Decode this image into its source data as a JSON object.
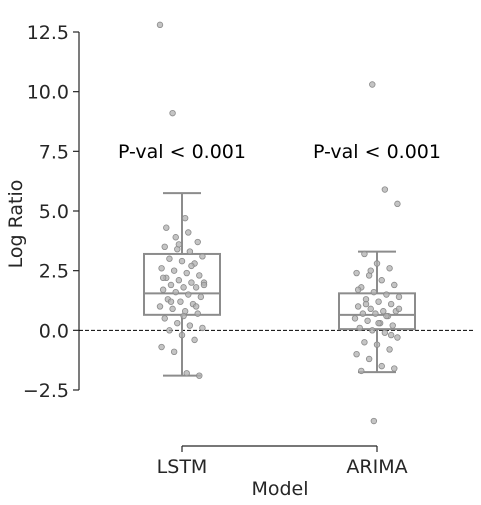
{
  "chart_data": {
    "type": "box",
    "categories": [
      "LSTM",
      "ARIMA"
    ],
    "xlabel": "Model",
    "ylabel": "Log Ratio",
    "yticks": [
      12.5,
      10.0,
      7.5,
      5.0,
      2.5,
      0.0,
      -2.5
    ],
    "ytick_labels": [
      "12.5",
      "10.0",
      "7.5",
      "5.0",
      "2.5",
      "0.0",
      "−2.5"
    ],
    "ylim": [
      -4.8,
      13.0
    ],
    "reference_line": {
      "y": 0.0,
      "style": "dashed",
      "color": "#000000"
    },
    "grid": false,
    "box_color": "#8c8c8c",
    "point_color": "#b0b0b0",
    "annotations": [
      "P-val < 0.001",
      "P-val < 0.001"
    ],
    "boxes": [
      {
        "name": "LSTM",
        "whisker_low": -1.9,
        "q1": 0.65,
        "median": 1.55,
        "q3": 3.2,
        "whisker_high": 5.75
      },
      {
        "name": "ARIMA",
        "whisker_low": -1.75,
        "q1": 0.05,
        "median": 0.65,
        "q3": 1.55,
        "whisker_high": 3.3
      }
    ],
    "points": [
      [
        12.8,
        9.1,
        4.7,
        3.7,
        3.5,
        3.4,
        3.3,
        3.1,
        3.0,
        2.9,
        2.8,
        2.6,
        2.5,
        2.4,
        2.3,
        2.2,
        2.1,
        2.0,
        2.0,
        1.9,
        1.8,
        1.8,
        1.7,
        1.6,
        1.5,
        1.4,
        1.3,
        1.2,
        1.1,
        1.0,
        0.9,
        0.8,
        0.7,
        0.5,
        0.3,
        0.2,
        0.1,
        0.0,
        -0.2,
        -0.4,
        -0.7,
        -0.9,
        -1.8,
        -1.9,
        4.3,
        3.6,
        2.7,
        1.9,
        1.2,
        0.6,
        1.0,
        2.2,
        3.9,
        4.1
      ],
      [
        10.3,
        5.9,
        5.3,
        3.2,
        2.8,
        2.6,
        2.4,
        2.3,
        2.1,
        1.9,
        1.8,
        1.6,
        1.5,
        1.4,
        1.3,
        1.2,
        1.1,
        1.0,
        0.9,
        0.8,
        0.8,
        0.7,
        0.7,
        0.6,
        0.5,
        0.4,
        0.3,
        0.2,
        0.1,
        0.0,
        -0.1,
        -0.3,
        -0.5,
        -0.6,
        -0.8,
        -1.0,
        -1.2,
        -1.5,
        -1.6,
        -1.7,
        -3.8,
        0.6,
        0.9,
        1.1,
        0.3,
        -0.2,
        1.7,
        2.5
      ]
    ]
  }
}
